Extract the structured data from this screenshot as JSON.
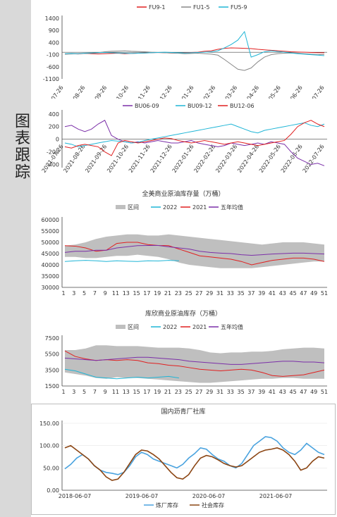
{
  "sidebar": {
    "title": "图表跟踪"
  },
  "chart_data": [
    {
      "type": "line",
      "title": "",
      "legend": [
        "FU9-1",
        "FU1-5",
        "FU5-9"
      ],
      "colors": [
        "#e02020",
        "#888888",
        "#1fb5d6"
      ],
      "yticks": [
        1400,
        900,
        400,
        -100,
        -600,
        -1100
      ],
      "ylim": [
        -1100,
        1400
      ],
      "xticks": [
        "2021-07-26",
        "2021-08-26",
        "2021-09-26",
        "2021-10-26",
        "2021-11-26",
        "2021-12-26",
        "2022-01-26",
        "2022-02-26",
        "2022-03-26",
        "2022-04-26",
        "2022-05-26",
        "2022-06-26",
        "2022-07-26"
      ],
      "series": [
        {
          "name": "FU9-1",
          "values": [
            -80,
            -60,
            -70,
            -50,
            -60,
            -70,
            -60,
            -50,
            -40,
            -60,
            -50,
            -40,
            -30,
            -20,
            -10,
            -20,
            -30,
            -40,
            -20,
            -10,
            0,
            40,
            60,
            120,
            160,
            180,
            170,
            160,
            150,
            120,
            100,
            80,
            60,
            40,
            20,
            10,
            0,
            -10,
            -20,
            -20
          ]
        },
        {
          "name": "FU1-5",
          "values": [
            -80,
            -70,
            -60,
            -50,
            -40,
            -20,
            20,
            40,
            50,
            60,
            40,
            30,
            20,
            0,
            -10,
            -20,
            -30,
            -40,
            -60,
            -50,
            -40,
            -60,
            -80,
            -120,
            -300,
            -500,
            -700,
            -750,
            -650,
            -400,
            -200,
            -100,
            -60,
            -40,
            -30,
            -40,
            -60,
            -80,
            -100,
            -90
          ]
        },
        {
          "name": "FU5-9",
          "values": [
            -60,
            -50,
            -60,
            -40,
            -30,
            -20,
            -10,
            -20,
            -30,
            -40,
            -50,
            -40,
            -30,
            -20,
            -10,
            0,
            -10,
            -20,
            -30,
            -20,
            -10,
            0,
            20,
            60,
            180,
            320,
            500,
            850,
            -200,
            -100,
            20,
            60,
            30,
            0,
            -30,
            -60,
            -80,
            -100,
            -120,
            -140
          ]
        }
      ]
    },
    {
      "type": "line",
      "title": "",
      "legend": [
        "BU06-09",
        "BU09-12",
        "BU12-06"
      ],
      "colors": [
        "#7b2fa8",
        "#1fb5d6",
        "#e02020"
      ],
      "yticks": [
        400,
        200,
        0,
        -200,
        -400
      ],
      "ylim": [
        -450,
        420
      ],
      "xticks": [
        "2021-07-26",
        "2021-08-26",
        "2021-09-26",
        "2021-10-26",
        "2021-11-26",
        "2021-12-26",
        "2022-01-26",
        "2022-02-26",
        "2022-03-26",
        "2022-04-26",
        "2022-05-26",
        "2022-06-26",
        "2022-07-26"
      ],
      "series": [
        {
          "name": "BU06-09",
          "values": [
            200,
            220,
            160,
            120,
            160,
            240,
            300,
            60,
            0,
            -40,
            -60,
            -40,
            -60,
            -40,
            -20,
            -40,
            -60,
            -60,
            -40,
            -20,
            -60,
            -80,
            -100,
            -120,
            -100,
            -60,
            -80,
            -100,
            -80,
            -60,
            -80,
            -40,
            -60,
            -80,
            -200,
            -300,
            -350,
            -400,
            -380,
            -420
          ]
        },
        {
          "name": "BU09-12",
          "values": [
            -60,
            -80,
            -120,
            -100,
            -80,
            -60,
            -40,
            -20,
            -30,
            -40,
            -60,
            -50,
            -20,
            0,
            20,
            40,
            60,
            80,
            100,
            120,
            140,
            160,
            180,
            200,
            220,
            240,
            200,
            160,
            120,
            100,
            140,
            160,
            180,
            200,
            220,
            240,
            260,
            220,
            200,
            240
          ]
        },
        {
          "name": "BU12-06",
          "values": [
            -120,
            -140,
            -100,
            -80,
            -100,
            -120,
            -200,
            -260,
            -60,
            -20,
            -40,
            -60,
            -40,
            -20,
            0,
            20,
            10,
            -20,
            -40,
            -60,
            -40,
            -20,
            -40,
            -60,
            -80,
            -60,
            -40,
            -60,
            -80,
            -100,
            -80,
            -60,
            -40,
            -20,
            80,
            200,
            260,
            300,
            240,
            200
          ]
        }
      ]
    },
    {
      "type": "line",
      "title": "全美商业原油库存量（万桶）",
      "legend": [
        "区间",
        "2022",
        "2021",
        "五年均值"
      ],
      "colors": [
        "#bfbfbf",
        "#1fb5d6",
        "#e02020",
        "#7b2fa8"
      ],
      "yticks": [
        60000,
        55000,
        50000,
        45000,
        40000,
        35000,
        30000
      ],
      "ylim": [
        30000,
        60000
      ],
      "xticks": [
        "1",
        "3",
        "5",
        "7",
        "9",
        "11",
        "13",
        "15",
        "17",
        "19",
        "21",
        "23",
        "25",
        "27",
        "29",
        "31",
        "33",
        "35",
        "37",
        "39",
        "41",
        "43",
        "45",
        "47",
        "49",
        "51"
      ],
      "series": [
        {
          "name": "区间上沿",
          "values": [
            48500,
            49000,
            50000,
            51500,
            52500,
            53000,
            53500,
            53500,
            53000,
            53000,
            53500,
            53000,
            52500,
            52000,
            51500,
            51000,
            50500,
            50000,
            49500,
            49000,
            49500,
            50000,
            50000,
            50000,
            49500,
            49000
          ]
        },
        {
          "name": "区间下沿",
          "values": [
            43500,
            43500,
            43000,
            43000,
            43500,
            44000,
            44000,
            44500,
            44000,
            43500,
            42500,
            41000,
            40000,
            39500,
            39000,
            38500,
            38500,
            38500,
            38500,
            39000,
            39500,
            40000,
            40500,
            41000,
            41500,
            41500
          ]
        },
        {
          "name": "2022",
          "values": [
            41500,
            41800,
            42000,
            41800,
            41500,
            41800,
            41600,
            41500,
            41800,
            41700,
            42000,
            41800
          ]
        },
        {
          "name": "2021",
          "values": [
            48500,
            48300,
            47500,
            46000,
            46500,
            49500,
            50000,
            50000,
            49000,
            48600,
            48500,
            47000,
            45500,
            44000,
            43500,
            43000,
            42500,
            41500,
            40000,
            41000,
            42000,
            42500,
            43000,
            43000,
            42500,
            41500
          ]
        },
        {
          "name": "五年均值",
          "values": [
            45500,
            46000,
            46000,
            46500,
            46500,
            47500,
            48000,
            48500,
            48600,
            48600,
            48000,
            47500,
            47000,
            46000,
            45500,
            45200,
            45000,
            44500,
            44200,
            44500,
            44800,
            45000,
            45200,
            45200,
            45000,
            44800
          ]
        }
      ]
    },
    {
      "type": "line",
      "title": "库欣商业原油库存（万桶）",
      "legend": [
        "区间",
        "2022",
        "2021",
        "五年均值"
      ],
      "colors": [
        "#bfbfbf",
        "#1fb5d6",
        "#e02020",
        "#7b2fa8"
      ],
      "yticks": [
        7500,
        5500,
        3500,
        1500
      ],
      "ylim": [
        1500,
        7500
      ],
      "xticks": [
        "1",
        "3",
        "5",
        "7",
        "9",
        "11",
        "13",
        "15",
        "17",
        "19",
        "21",
        "23",
        "25",
        "27",
        "29",
        "31",
        "33",
        "35",
        "37",
        "39",
        "41",
        "43",
        "45",
        "47",
        "49",
        "51"
      ],
      "series": [
        {
          "name": "区间上沿",
          "values": [
            6000,
            6000,
            6200,
            6600,
            6600,
            6500,
            6500,
            6500,
            6400,
            6300,
            6300,
            6300,
            6200,
            6000,
            5700,
            5600,
            5700,
            5700,
            5800,
            5800,
            5900,
            6100,
            6200,
            6300,
            6300,
            6200
          ]
        },
        {
          "name": "区间下沿",
          "values": [
            3200,
            3000,
            2800,
            2500,
            2400,
            2600,
            2500,
            2500,
            2400,
            2300,
            2200,
            2100,
            2000,
            1900,
            1900,
            2000,
            2100,
            2200,
            2300,
            2400,
            2400,
            2500,
            2500,
            2400,
            2400,
            2400
          ]
        },
        {
          "name": "2022",
          "values": [
            3600,
            3400,
            3000,
            2600,
            2500,
            2400,
            2500,
            2600,
            2500,
            2600,
            2700,
            2500
          ]
        },
        {
          "name": "2021",
          "values": [
            5900,
            5200,
            4900,
            4700,
            4800,
            4700,
            4800,
            4700,
            4400,
            4300,
            4100,
            4000,
            3800,
            3600,
            3500,
            3400,
            3500,
            3600,
            3500,
            3200,
            2800,
            2700,
            2800,
            2900,
            3200,
            3500
          ]
        },
        {
          "name": "五年均值",
          "values": [
            5000,
            4900,
            4800,
            4700,
            4800,
            4900,
            5000,
            5100,
            5100,
            5000,
            4900,
            4800,
            4600,
            4500,
            4400,
            4300,
            4200,
            4200,
            4300,
            4400,
            4500,
            4600,
            4600,
            4500,
            4500,
            4400
          ]
        }
      ]
    },
    {
      "type": "line",
      "title": "国内沥青厂社库",
      "legend": [
        "炼厂库存",
        "社会库存"
      ],
      "colors": [
        "#4aa3df",
        "#8b4513"
      ],
      "yticks": [
        "150.00",
        "100.00",
        "50.00",
        "0.00"
      ],
      "ylim": [
        0,
        150
      ],
      "xticks": [
        "2018-06-07",
        "2019-06-07",
        "2020-06-07",
        "2021-06-07"
      ],
      "series": [
        {
          "name": "炼厂库存",
          "values": [
            48,
            58,
            72,
            80,
            70,
            55,
            45,
            40,
            38,
            35,
            40,
            55,
            75,
            85,
            80,
            70,
            65,
            60,
            55,
            50,
            58,
            72,
            82,
            95,
            92,
            80,
            70,
            65,
            55,
            50,
            60,
            80,
            100,
            110,
            120,
            118,
            110,
            95,
            85,
            80,
            90,
            105,
            95,
            85,
            80
          ]
        },
        {
          "name": "社会库存",
          "values": [
            95,
            100,
            90,
            80,
            70,
            55,
            45,
            30,
            22,
            25,
            40,
            60,
            80,
            90,
            88,
            80,
            70,
            55,
            40,
            28,
            25,
            35,
            55,
            72,
            78,
            75,
            68,
            60,
            55,
            52,
            55,
            65,
            75,
            85,
            90,
            92,
            95,
            90,
            80,
            65,
            45,
            50,
            65,
            75,
            72
          ]
        }
      ]
    }
  ]
}
